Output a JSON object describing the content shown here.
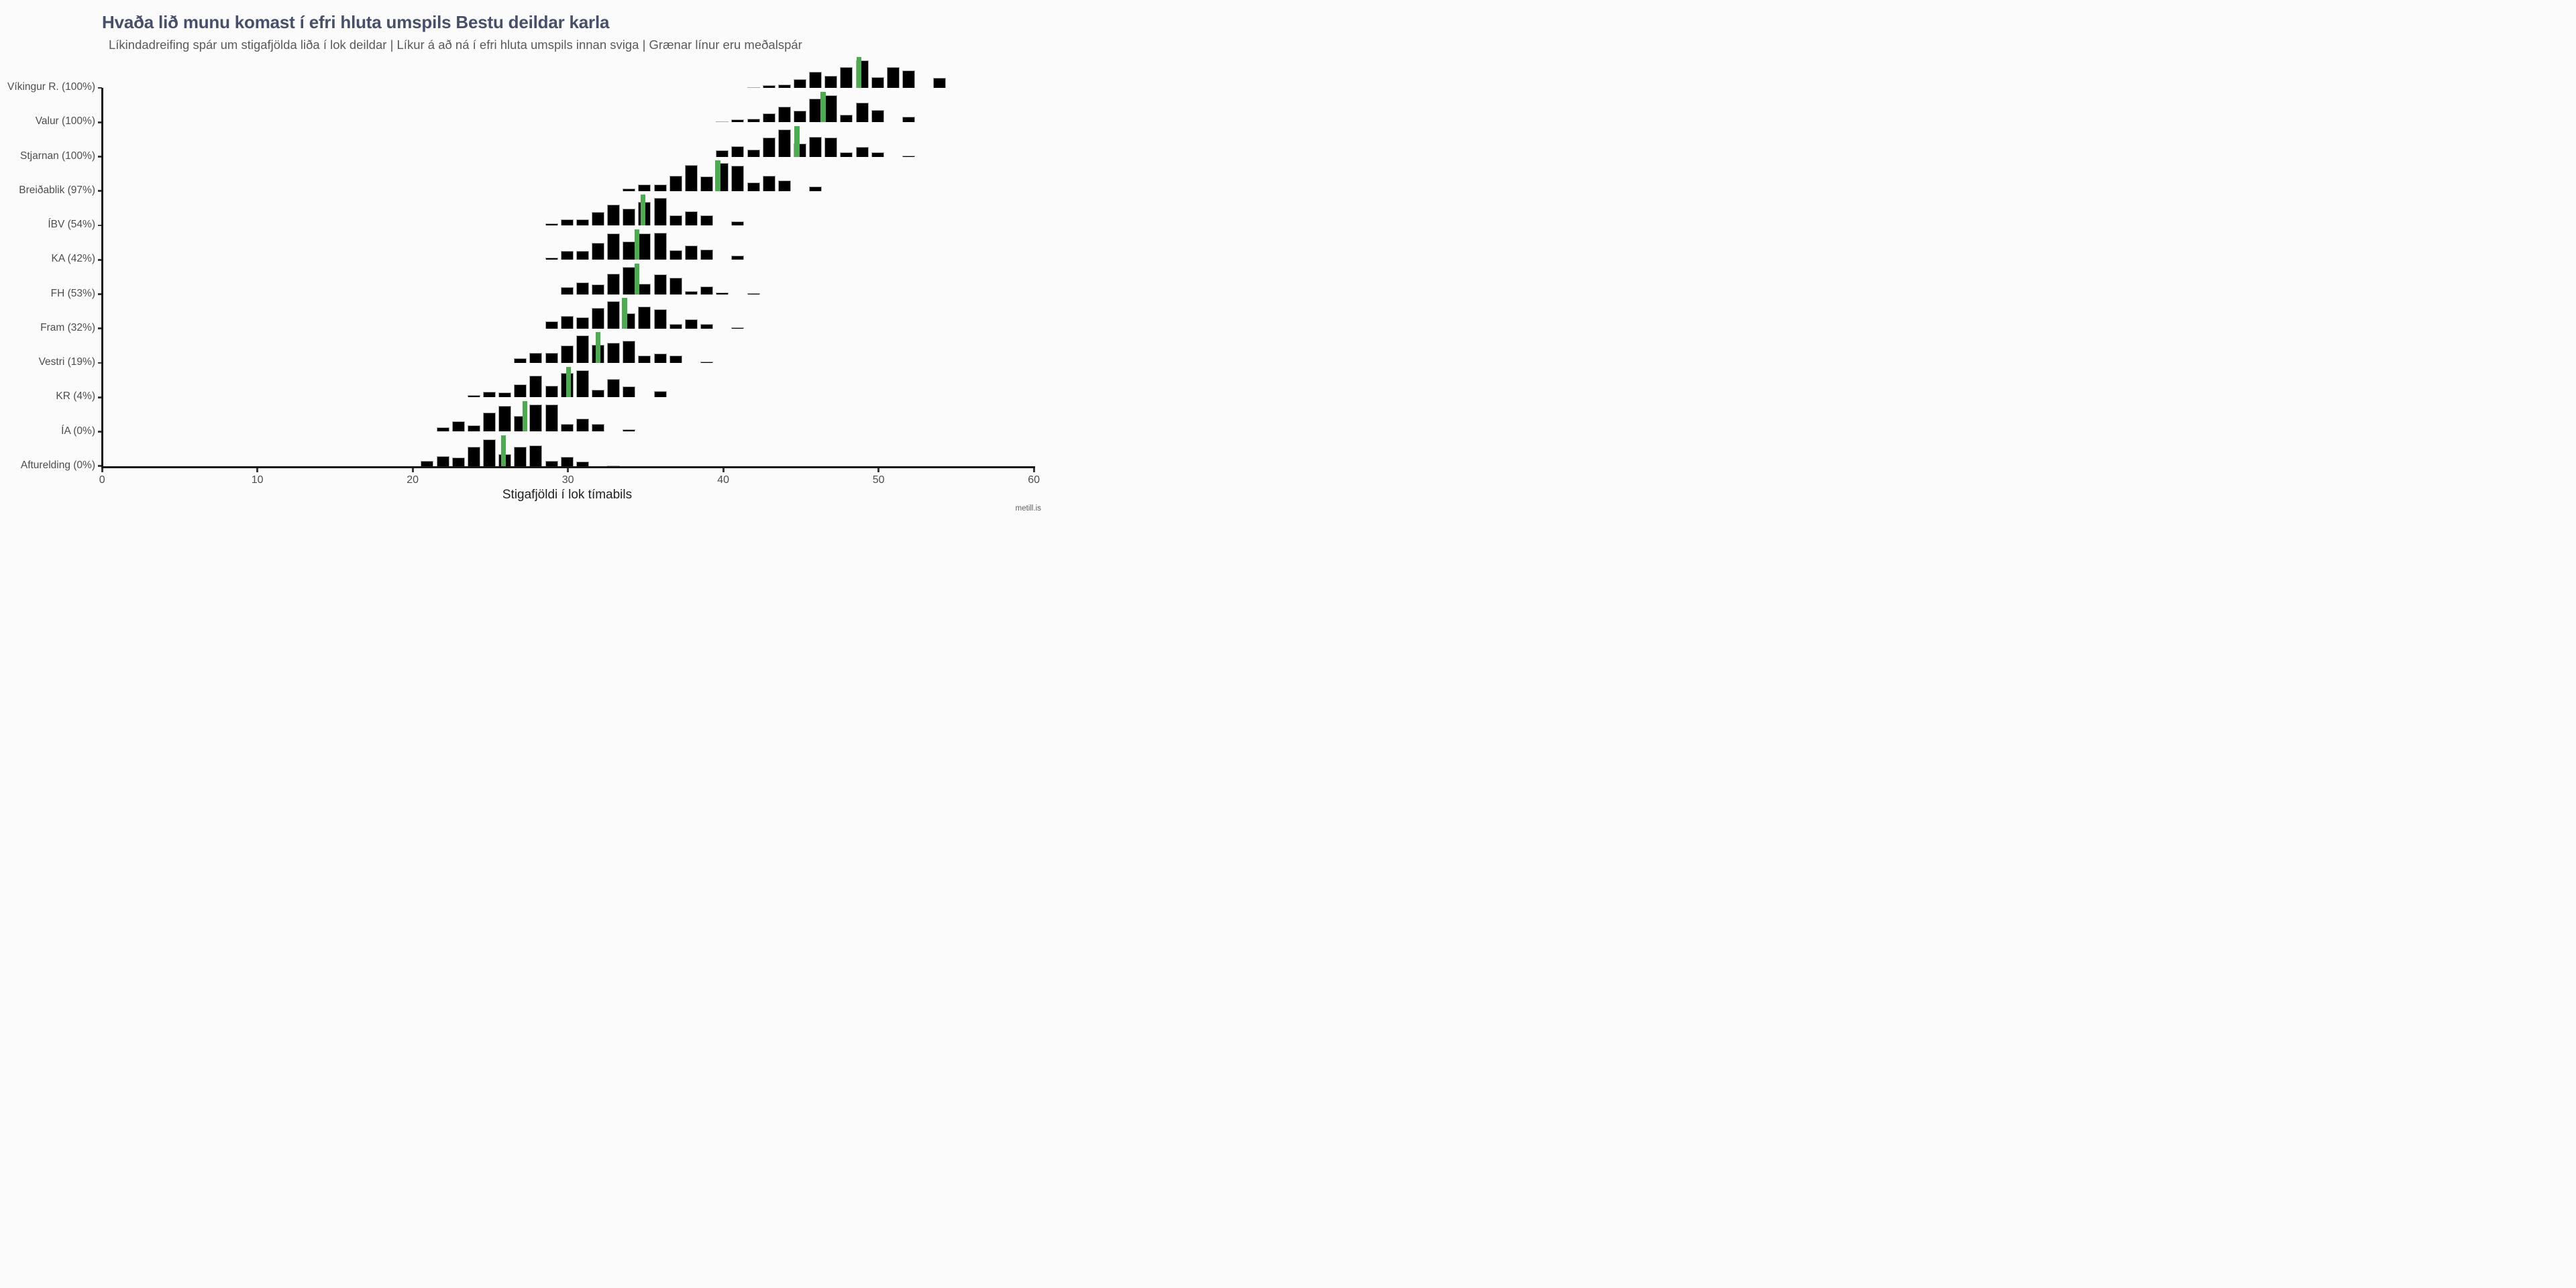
{
  "chart_data": {
    "type": "bar",
    "variant": "faceted-histogram-ridgeline",
    "title": "Hvaða lið munu komast í efri hluta umspils Bestu deildar karla",
    "subtitle": "Líkindadreifing spár um stigafjölda liða í lok deildar | Líkur á að ná í efri hluta umspils innan sviga | Grænar línur eru meðalspár",
    "xlabel": "Stigafjöldi í lok tímabils",
    "xlim": [
      0,
      60
    ],
    "x_ticks": [
      0,
      10,
      20,
      30,
      40,
      50,
      60
    ],
    "grid": false,
    "legend": "none",
    "colors": {
      "bar_fill": "#000000",
      "bar_stroke": "#a8a8a8",
      "mean_line": "#4bad4f",
      "axis": "#161616",
      "title": "#474f6b",
      "subtitle": "#5a5a5a",
      "labels": "#4d4d4d",
      "background": "#fbfbfb"
    },
    "teams": [
      {
        "label": "Víkingur R. (100%)",
        "name": "Víkingur R.",
        "playoff_prob": "100%",
        "mean": 48.8,
        "bars": [
          [
            42,
            0.03
          ],
          [
            43,
            0.11
          ],
          [
            44,
            0.12
          ],
          [
            45,
            0.33
          ],
          [
            46,
            0.6
          ],
          [
            47,
            0.44
          ],
          [
            48,
            0.77
          ],
          [
            49,
            1.0
          ],
          [
            50,
            0.4
          ],
          [
            51,
            0.77
          ],
          [
            52,
            0.63
          ],
          [
            54,
            0.37
          ]
        ]
      },
      {
        "label": "Valur (100%)",
        "name": "Valur",
        "playoff_prob": "100%",
        "mean": 46.5,
        "bars": [
          [
            40,
            0.04
          ],
          [
            41,
            0.1
          ],
          [
            42,
            0.12
          ],
          [
            43,
            0.33
          ],
          [
            44,
            0.57
          ],
          [
            45,
            0.43
          ],
          [
            46,
            0.87
          ],
          [
            47,
            0.99
          ],
          [
            48,
            0.29
          ],
          [
            49,
            0.72
          ],
          [
            50,
            0.46
          ],
          [
            52,
            0.21
          ]
        ]
      },
      {
        "label": "Stjarnan (100%)",
        "name": "Stjarnan",
        "playoff_prob": "100%",
        "mean": 44.8,
        "bars": [
          [
            40,
            0.23
          ],
          [
            41,
            0.38
          ],
          [
            42,
            0.26
          ],
          [
            43,
            0.69
          ],
          [
            44,
            1.0
          ],
          [
            45,
            0.48
          ],
          [
            46,
            0.72
          ],
          [
            47,
            0.71
          ],
          [
            48,
            0.16
          ],
          [
            49,
            0.36
          ],
          [
            50,
            0.16
          ],
          [
            52,
            0.04
          ]
        ]
      },
      {
        "label": "Breiðablik (97%)",
        "name": "Breiðablik",
        "playoff_prob": "97%",
        "mean": 39.7,
        "bars": [
          [
            34,
            0.09
          ],
          [
            35,
            0.25
          ],
          [
            36,
            0.23
          ],
          [
            37,
            0.56
          ],
          [
            38,
            0.95
          ],
          [
            39,
            0.53
          ],
          [
            40,
            1.02
          ],
          [
            41,
            0.93
          ],
          [
            42,
            0.32
          ],
          [
            43,
            0.57
          ],
          [
            44,
            0.38
          ],
          [
            46,
            0.16
          ]
        ]
      },
      {
        "label": "ÍBV (54%)",
        "name": "ÍBV",
        "playoff_prob": "54%",
        "mean": 34.9,
        "bars": [
          [
            29,
            0.07
          ],
          [
            30,
            0.23
          ],
          [
            31,
            0.23
          ],
          [
            32,
            0.48
          ],
          [
            33,
            0.76
          ],
          [
            34,
            0.61
          ],
          [
            35,
            0.86
          ],
          [
            36,
            1.0
          ],
          [
            37,
            0.37
          ],
          [
            38,
            0.52
          ],
          [
            39,
            0.38
          ],
          [
            41,
            0.15
          ]
        ]
      },
      {
        "label": "KA (42%)",
        "name": "KA",
        "playoff_prob": "42%",
        "mean": 34.5,
        "bars": [
          [
            29,
            0.07
          ],
          [
            30,
            0.32
          ],
          [
            31,
            0.33
          ],
          [
            32,
            0.62
          ],
          [
            33,
            0.97
          ],
          [
            34,
            0.68
          ],
          [
            35,
            0.96
          ],
          [
            36,
            1.0
          ],
          [
            37,
            0.36
          ],
          [
            38,
            0.51
          ],
          [
            39,
            0.37
          ],
          [
            41,
            0.15
          ]
        ]
      },
      {
        "label": "FH (53%)",
        "name": "FH",
        "playoff_prob": "53%",
        "mean": 34.5,
        "bars": [
          [
            30,
            0.26
          ],
          [
            31,
            0.42
          ],
          [
            32,
            0.35
          ],
          [
            33,
            0.76
          ],
          [
            34,
            1.0
          ],
          [
            35,
            0.39
          ],
          [
            36,
            0.72
          ],
          [
            37,
            0.59
          ],
          [
            38,
            0.11
          ],
          [
            39,
            0.28
          ],
          [
            40,
            0.07
          ],
          [
            42,
            0.03
          ]
        ]
      },
      {
        "label": "Fram (32%)",
        "name": "Fram",
        "playoff_prob": "32%",
        "mean": 33.7,
        "bars": [
          [
            29,
            0.26
          ],
          [
            30,
            0.45
          ],
          [
            31,
            0.4
          ],
          [
            32,
            0.75
          ],
          [
            33,
            0.99
          ],
          [
            34,
            0.57
          ],
          [
            35,
            0.8
          ],
          [
            36,
            0.71
          ],
          [
            37,
            0.17
          ],
          [
            38,
            0.33
          ],
          [
            39,
            0.16
          ],
          [
            41,
            0.05
          ]
        ]
      },
      {
        "label": "Vestri (19%)",
        "name": "Vestri",
        "playoff_prob": "19%",
        "mean": 32.0,
        "bars": [
          [
            27,
            0.16
          ],
          [
            28,
            0.37
          ],
          [
            29,
            0.37
          ],
          [
            30,
            0.65
          ],
          [
            31,
            1.0
          ],
          [
            32,
            0.67
          ],
          [
            33,
            0.74
          ],
          [
            34,
            0.8
          ],
          [
            35,
            0.27
          ],
          [
            36,
            0.35
          ],
          [
            37,
            0.26
          ],
          [
            39,
            0.06
          ]
        ]
      },
      {
        "label": "KR (4%)",
        "name": "KR",
        "playoff_prob": "4%",
        "mean": 30.1,
        "bars": [
          [
            24,
            0.08
          ],
          [
            25,
            0.21
          ],
          [
            26,
            0.18
          ],
          [
            27,
            0.47
          ],
          [
            28,
            0.79
          ],
          [
            29,
            0.43
          ],
          [
            30,
            0.89
          ],
          [
            31,
            0.99
          ],
          [
            32,
            0.27
          ],
          [
            33,
            0.68
          ],
          [
            34,
            0.4
          ],
          [
            36,
            0.22
          ]
        ]
      },
      {
        "label": "ÍA (0%)",
        "name": "ÍA",
        "playoff_prob": "0%",
        "mean": 27.3,
        "bars": [
          [
            22,
            0.17
          ],
          [
            23,
            0.37
          ],
          [
            24,
            0.24
          ],
          [
            25,
            0.69
          ],
          [
            26,
            0.95
          ],
          [
            27,
            0.58
          ],
          [
            28,
            1.0
          ],
          [
            29,
            0.99
          ],
          [
            30,
            0.27
          ],
          [
            31,
            0.48
          ],
          [
            32,
            0.28
          ],
          [
            34,
            0.09
          ]
        ]
      },
      {
        "label": "Afturelding (0%)",
        "name": "Afturelding",
        "playoff_prob": "0%",
        "mean": 25.9,
        "bars": [
          [
            21,
            0.18
          ],
          [
            22,
            0.37
          ],
          [
            23,
            0.31
          ],
          [
            24,
            0.7
          ],
          [
            25,
            0.97
          ],
          [
            26,
            0.44
          ],
          [
            27,
            0.7
          ],
          [
            28,
            0.75
          ],
          [
            29,
            0.18
          ],
          [
            30,
            0.33
          ],
          [
            31,
            0.16
          ],
          [
            33,
            0.03
          ]
        ]
      }
    ]
  },
  "footer": {
    "watermark": "metill.is"
  }
}
